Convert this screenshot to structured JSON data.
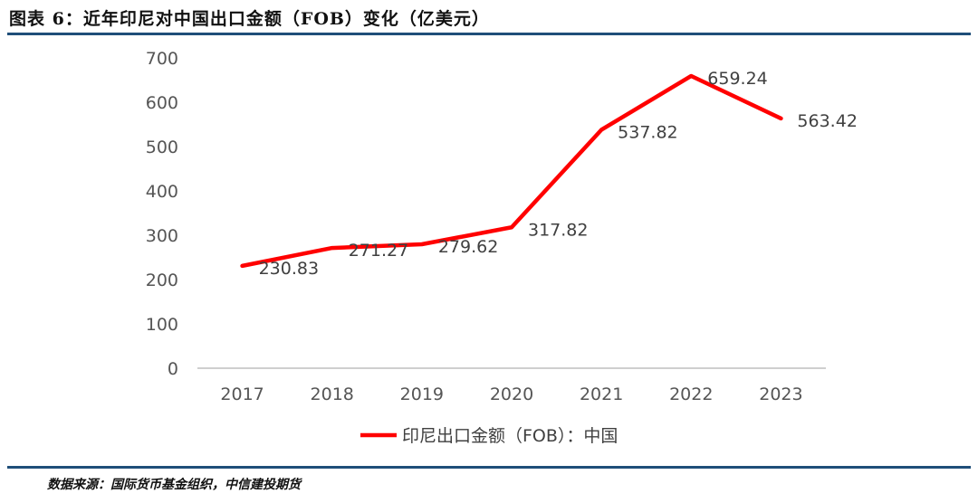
{
  "header": {
    "title": "图表 6：近年印尼对中国出口金额（FOB）变化（亿美元）"
  },
  "footer": {
    "source": "数据来源：国际货币基金组织，中信建投期货"
  },
  "chart_data": {
    "type": "line",
    "title": "",
    "xlabel": "",
    "ylabel": "",
    "categories": [
      "2017",
      "2018",
      "2019",
      "2020",
      "2021",
      "2022",
      "2023"
    ],
    "series": [
      {
        "name": "印尼出口金额（FOB）：中国",
        "values": [
          230.83,
          271.27,
          279.62,
          317.82,
          537.82,
          659.24,
          563.42
        ],
        "color": "#ff0000",
        "labels": [
          "230.83",
          "271.27",
          "279.62",
          "317.82",
          "537.82",
          "659.24",
          "563.42"
        ]
      }
    ],
    "yticks": [
      "0",
      "100",
      "200",
      "300",
      "400",
      "500",
      "600",
      "700"
    ],
    "ylim": [
      0,
      700
    ],
    "grid": false,
    "legend_position": "bottom"
  }
}
